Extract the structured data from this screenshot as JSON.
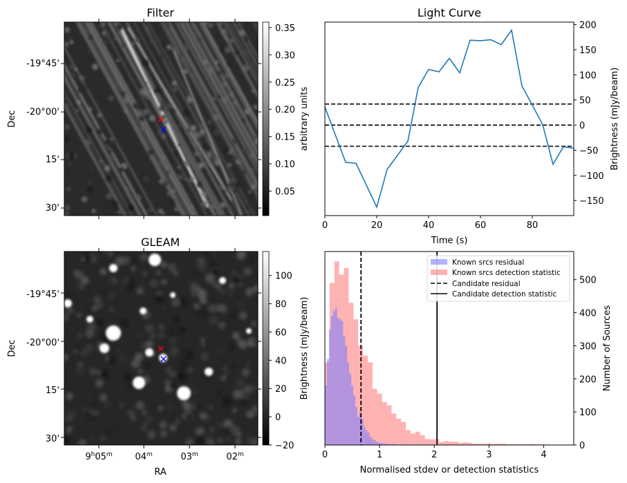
{
  "chart_data": [
    {
      "type": "heatmap",
      "title": "Filter",
      "xlabel": "",
      "ylabel": "Dec",
      "yticks": [
        "-19°45'",
        "-20°00'",
        "15'",
        "30'"
      ],
      "colorbar": {
        "label": "arbitrary units",
        "ticks": [
          "0.05",
          "0.10",
          "0.15",
          "0.20",
          "0.25",
          "0.30",
          "0.35"
        ],
        "range": [
          0.005,
          0.36
        ]
      },
      "markers": [
        {
          "symbol": "x",
          "color": "#ff0000"
        },
        {
          "symbol": "x",
          "color": "#0000ff"
        }
      ],
      "description": "Grey-scale filtered sky image with diagonal streaks running top-left to bottom-right"
    },
    {
      "type": "line",
      "title": "Light Curve",
      "xlabel": "Time (s)",
      "ylabel": "Brightness (mJy/beam)",
      "xlim": [
        0,
        96
      ],
      "ylim": [
        -180,
        205
      ],
      "xticks": [
        "0",
        "20",
        "40",
        "60",
        "80"
      ],
      "yticks": [
        "−150",
        "−100",
        "−50",
        "0",
        "50",
        "100",
        "150",
        "200"
      ],
      "x": [
        0,
        8,
        12,
        20,
        24,
        32,
        36,
        40,
        44,
        48,
        52,
        56,
        60,
        64,
        68,
        72,
        76,
        80,
        84,
        88,
        92,
        96
      ],
      "series": [
        {
          "name": "light curve",
          "color": "#1f77b4",
          "values": [
            36,
            -74,
            -76,
            -163,
            -88,
            -32,
            75,
            111,
            106,
            133,
            104,
            169,
            168,
            170,
            160,
            189,
            78,
            40,
            1,
            -78,
            -43,
            -46
          ]
        }
      ],
      "hlines": [
        {
          "value": 42,
          "style": "dashed"
        },
        {
          "value": 0,
          "style": "dashed"
        },
        {
          "value": -42,
          "style": "dashed"
        }
      ]
    },
    {
      "type": "heatmap",
      "title": "GLEAM",
      "xlabel": "RA",
      "ylabel": "Dec",
      "xticks": [
        "9h05m",
        "04m",
        "03m",
        "02m"
      ],
      "yticks": [
        "-19°45'",
        "-20°00'",
        "15'",
        "30'"
      ],
      "colorbar": {
        "label": "Brightness (mJy/beam)",
        "ticks": [
          "−20",
          "0",
          "20",
          "40",
          "60",
          "80",
          "100"
        ],
        "range": [
          -20,
          117
        ]
      },
      "markers": [
        {
          "symbol": "x",
          "color": "#ff0000"
        },
        {
          "symbol": "x",
          "color": "#0000ff"
        }
      ],
      "description": "Grey-scale GLEAM survey image with bright compact point sources"
    },
    {
      "type": "bar",
      "subtype": "histogram",
      "title": "",
      "xlabel": "Normalised stdev or detection statistics",
      "ylabel": "Number of Sources",
      "xlim": [
        0,
        4.55
      ],
      "ylim": [
        0,
        585
      ],
      "xticks": [
        "0",
        "1",
        "2",
        "3",
        "4"
      ],
      "yticks": [
        "0",
        "100",
        "200",
        "300",
        "400",
        "500"
      ],
      "legend": {
        "position": "upper-right",
        "entries": [
          {
            "label": "Known srcs residual",
            "kind": "patch",
            "color": "#7f7fff"
          },
          {
            "label": "Known srcs detection statistic",
            "kind": "patch",
            "color": "#ff7f7f"
          },
          {
            "label": "Candidate residual",
            "kind": "line-dashed",
            "color": "#000000"
          },
          {
            "label": "Candidate detection statistic",
            "kind": "line-solid",
            "color": "#000000"
          }
        ]
      },
      "bin_width": 0.087,
      "series": [
        {
          "name": "Known srcs residual",
          "color": "#7f7fff",
          "start": 0.0,
          "bin_width": 0.037,
          "values": [
            180,
            260,
            350,
            390,
            405,
            415,
            385,
            380,
            375,
            330,
            300,
            250,
            215,
            180,
            150,
            115,
            85,
            100,
            80,
            55,
            45,
            38,
            25,
            18,
            15,
            10,
            8,
            6,
            5,
            4,
            3,
            3,
            2,
            2,
            2,
            1,
            1,
            1
          ]
        },
        {
          "name": "Known srcs detection statistic",
          "color": "#ff7f7f",
          "start": 0.0,
          "bin_width": 0.087,
          "values": [
            250,
            490,
            555,
            515,
            535,
            430,
            380,
            300,
            270,
            250,
            170,
            155,
            130,
            120,
            95,
            80,
            70,
            45,
            35,
            40,
            30,
            18,
            17,
            18,
            9,
            12,
            10,
            10,
            6,
            8,
            7,
            4,
            4,
            4,
            5,
            3,
            4,
            4,
            2,
            2,
            2,
            2,
            2,
            3,
            2,
            2,
            2,
            1,
            1
          ]
        },
        {
          "name": "Candidate residual",
          "kind": "vline",
          "value": 0.66
        },
        {
          "name": "Candidate detection statistic",
          "kind": "vline",
          "value": 2.05
        }
      ]
    }
  ]
}
